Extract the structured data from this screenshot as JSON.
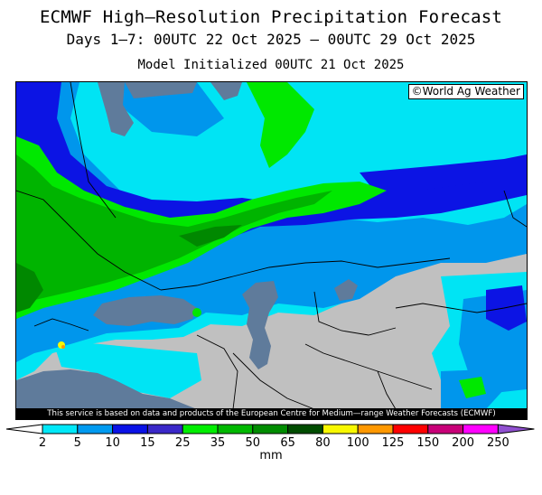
{
  "title": "ECMWF High—Resolution Precipitation Forecast",
  "subtitle": "Days 1–7: 00UTC 22 Oct 2025 — 00UTC 29 Oct 2025",
  "init_line": "Model Initialized 00UTC 21 Oct 2025",
  "copyright": "©World Ag Weather",
  "disclaimer": "This service is based on data and products of the European Centre for Medium—range Weather Forecasts (ECMWF)",
  "legend": {
    "unit": "mm",
    "ticks": [
      "2",
      "5",
      "10",
      "15",
      "25",
      "35",
      "50",
      "65",
      "80",
      "100",
      "125",
      "150",
      "200",
      "250"
    ],
    "colors": [
      "#00e8f8",
      "#009af0",
      "#0a12e6",
      "#3a28c8",
      "#00ee00",
      "#00b800",
      "#008c00",
      "#004c00",
      "#f8f800",
      "#ff9800",
      "#ff0000",
      "#c80078",
      "#ff00ff",
      "#9050d0"
    ]
  },
  "map": {
    "land_color": "#c0c0c0",
    "water_color": "#5f7b9b",
    "border_color": "#000000"
  }
}
